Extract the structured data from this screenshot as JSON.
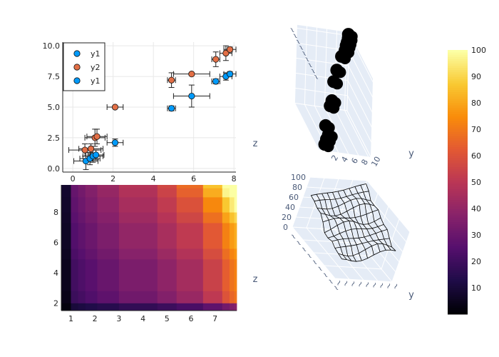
{
  "colors": {
    "series_blue": "#009AFA",
    "series_orange": "#E26F46",
    "error_bar": "#222222",
    "pane_bg": "#E5ECF6",
    "grid": "#E8E8E8"
  },
  "chart_data": [
    {
      "type": "scatter",
      "xlim": [
        -0.5,
        8.1
      ],
      "ylim": [
        -0.3,
        10.3
      ],
      "x_ticks": [
        "0",
        "2",
        "4",
        "6",
        "8"
      ],
      "x_tick_values": [
        0,
        2,
        4,
        6,
        8
      ],
      "y_ticks": [
        "0.0",
        "2.5",
        "5.0",
        "7.5",
        "10.0"
      ],
      "y_tick_values": [
        0,
        2.5,
        5,
        7.5,
        10
      ],
      "legend": {
        "position": "top-left",
        "entries": [
          "y1",
          "y2",
          "y1"
        ]
      },
      "grid": true,
      "series": [
        {
          "name": "y1",
          "color": "#009AFA",
          "points": [
            {
              "x": 0.65,
              "y": 0.6,
              "xerr": 0.6,
              "yerr": 0.7
            },
            {
              "x": 0.85,
              "y": 0.8,
              "xerr": 0.5,
              "yerr": 0.5
            },
            {
              "x": 1.0,
              "y": 1.0,
              "xerr": 0.5,
              "yerr": 0.5
            },
            {
              "x": 1.15,
              "y": 1.1,
              "xerr": 0.4,
              "yerr": 0.4
            },
            {
              "x": 2.1,
              "y": 2.1,
              "xerr": 0.4,
              "yerr": 0.3
            },
            {
              "x": 4.9,
              "y": 4.9,
              "xerr": 0.2,
              "yerr": 0.2
            },
            {
              "x": 5.9,
              "y": 5.9,
              "xerr": 0.9,
              "yerr": 0.9
            },
            {
              "x": 7.1,
              "y": 7.1,
              "xerr": 0.2,
              "yerr": 0.2
            },
            {
              "x": 7.6,
              "y": 7.5,
              "xerr": 0.3,
              "yerr": 0.3
            },
            {
              "x": 7.8,
              "y": 7.7,
              "xerr": 0.3,
              "yerr": 0.2
            }
          ]
        },
        {
          "name": "y2",
          "color": "#E26F46",
          "points": [
            {
              "x": 0.6,
              "y": 1.5,
              "xerr": 0.8,
              "yerr": 0.5
            },
            {
              "x": 0.9,
              "y": 1.6,
              "xerr": 0.6,
              "yerr": 0.4
            },
            {
              "x": 1.1,
              "y": 2.5,
              "xerr": 0.5,
              "yerr": 0.7
            },
            {
              "x": 1.2,
              "y": 2.6,
              "xerr": 0.5,
              "yerr": 0.6
            },
            {
              "x": 2.1,
              "y": 5.0,
              "xerr": 0.4,
              "yerr": 0.1
            },
            {
              "x": 4.9,
              "y": 7.2,
              "xerr": 0.2,
              "yerr": 0.6
            },
            {
              "x": 5.9,
              "y": 7.7,
              "xerr": 0.9,
              "yerr": 0.1
            },
            {
              "x": 7.1,
              "y": 8.9,
              "xerr": 0.2,
              "yerr": 0.6
            },
            {
              "x": 7.6,
              "y": 9.4,
              "xerr": 0.3,
              "yerr": 0.6
            },
            {
              "x": 7.8,
              "y": 9.7,
              "xerr": 0.3,
              "yerr": 0.2
            }
          ]
        }
      ]
    },
    {
      "type": "scatter3d",
      "axis_labels": {
        "z": "z",
        "y": "y"
      },
      "y_ticks": [
        "2",
        "4",
        "6",
        "8",
        "10"
      ],
      "x_ticks_note": "rotated tick labels (illegible)",
      "marker_color": "#000000",
      "points": [
        {
          "x": 0.5,
          "y": 1.5,
          "z": 0.5
        },
        {
          "x": 0.8,
          "y": 2.0,
          "z": 1.0
        },
        {
          "x": 1.0,
          "y": 2.5,
          "z": 1.5
        },
        {
          "x": 1.2,
          "y": 2.0,
          "z": 2.5
        },
        {
          "x": 1.5,
          "y": 3.0,
          "z": 5.0
        },
        {
          "x": 1.8,
          "y": 3.5,
          "z": 5.5
        },
        {
          "x": 3.0,
          "y": 4.5,
          "z": 7.2
        },
        {
          "x": 4.5,
          "y": 6.0,
          "z": 7.7
        },
        {
          "x": 5.5,
          "y": 7.5,
          "z": 8.9
        },
        {
          "x": 6.0,
          "y": 8.5,
          "z": 9.4
        },
        {
          "x": 6.5,
          "y": 9.0,
          "z": 9.7
        },
        {
          "x": 7.0,
          "y": 9.5,
          "z": 9.8
        },
        {
          "x": 7.5,
          "y": 10.0,
          "z": 10.0
        },
        {
          "x": 7.8,
          "y": 10.2,
          "z": 10.3
        }
      ]
    },
    {
      "type": "heatmap",
      "x_ticks": [
        "1",
        "2",
        "3",
        "4",
        "5",
        "6",
        "7"
      ],
      "x_tick_values": [
        1,
        2,
        3,
        4,
        5,
        6,
        7
      ],
      "y_ticks": [
        "2",
        "4",
        "6",
        "8"
      ],
      "y_tick_values": [
        2,
        4,
        6,
        8
      ],
      "xlim": [
        0.6,
        7.9
      ],
      "ylim": [
        1.5,
        9.8
      ],
      "x_edges": [
        0.6,
        0.8,
        1.0,
        1.3,
        1.6,
        2.1,
        3.0,
        4.6,
        5.4,
        6.5,
        7.3,
        7.6,
        7.8,
        7.9
      ],
      "y_edges": [
        1.5,
        2.0,
        2.8,
        4.9,
        5.6,
        7.3,
        8.0,
        9.0,
        9.6,
        9.8
      ],
      "colorscale": "inferno",
      "zlim": [
        0,
        100
      ]
    },
    {
      "type": "surface3d",
      "axis_labels": {
        "z": "z",
        "y": "y"
      },
      "z_ticks": [
        "0",
        "20",
        "40",
        "60",
        "80",
        "100"
      ],
      "zlim": [
        0,
        100
      ],
      "line_color": "#000000"
    },
    {
      "type": "colorbar",
      "colorscale": "inferno",
      "range": [
        0,
        100
      ],
      "ticks": [
        "10",
        "20",
        "30",
        "40",
        "50",
        "60",
        "70",
        "80",
        "90",
        "100"
      ],
      "tick_values": [
        10,
        20,
        30,
        40,
        50,
        60,
        70,
        80,
        90,
        100
      ]
    }
  ]
}
